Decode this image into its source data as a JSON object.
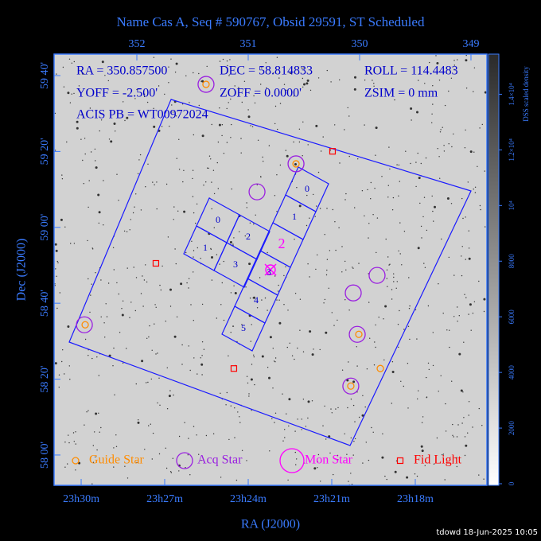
{
  "chart_data": {
    "type": "skymap",
    "title": "Name Cas A, Seq # 590767, Obsid 29591, ST Scheduled",
    "info": [
      "RA = 350.857500",
      "DEC = 58.814833",
      "ROLL = 114.4483",
      "YOFF = -2.500'",
      "ZOFF = 0.0000'",
      "ZSIM = 0 mm",
      "ACIS PB = WT00972024"
    ],
    "xlabel": "RA (J2000)",
    "ylabel": "Dec (J2000)",
    "xlim": [
      352.743,
      348.857
    ],
    "ylim": [
      57.867,
      59.761
    ],
    "xticks": [
      {
        "value": 352.5,
        "label": "23h30m"
      },
      {
        "value": 351.75,
        "label": "23h27m"
      },
      {
        "value": 351.0,
        "label": "23h24m"
      },
      {
        "value": 350.25,
        "label": "23h21m"
      },
      {
        "value": 349.5,
        "label": "23h18m"
      }
    ],
    "x2ticks": [
      352,
      351,
      350,
      349
    ],
    "yticks": [
      {
        "value": 58.0,
        "label": "58 00'"
      },
      {
        "value": 58.3333,
        "label": "58 20'"
      },
      {
        "value": 58.6667,
        "label": "58 40'"
      },
      {
        "value": 59.0,
        "label": "59 00'"
      },
      {
        "value": 59.3333,
        "label": "59 20'"
      },
      {
        "value": 59.6667,
        "label": "59 40'"
      }
    ],
    "colorbar": {
      "label": "DSS scaled density",
      "clim": [
        0,
        15500
      ],
      "ticks": [
        0,
        2000,
        4000,
        6000,
        8000,
        {
          "value": 10000,
          "label": "10⁴"
        },
        {
          "value": 12000,
          "label": "1.2×10⁴"
        },
        {
          "value": 14000,
          "label": "1.4×10⁴"
        }
      ]
    },
    "series": [
      {
        "name": "Guide Star",
        "color": "#ff8c00",
        "marker": "small-circle",
        "ra": [
          351.379,
          350.571,
          352.464,
          350.007,
          350.079,
          349.814
        ],
        "dec": [
          59.628,
          59.279,
          58.572,
          58.53,
          58.303,
          58.38
        ]
      },
      {
        "name": "Acq Star",
        "color": "#9a1fe0",
        "marker": "circle",
        "ra": [
          351.379,
          350.571,
          350.921,
          349.843,
          350.057,
          350.021,
          352.471,
          350.079
        ],
        "dec": [
          59.628,
          59.279,
          59.156,
          58.789,
          58.712,
          58.53,
          58.572,
          58.303
        ]
      },
      {
        "name": "Mon Star",
        "color": "#ff00ff",
        "marker": "big-circle",
        "ra": [],
        "dec": []
      },
      {
        "name": "Fid Light",
        "color": "#ff0000",
        "marker": "square",
        "ra": [
          350.243,
          351.829,
          351.129
        ],
        "dec": [
          59.334,
          58.842,
          58.38
        ]
      }
    ],
    "chip_labels_i": [
      "0",
      "2",
      "1",
      "3"
    ],
    "chip_labels_s": [
      "0",
      "1",
      "2",
      "3",
      "4",
      "5"
    ],
    "footer": "tdowd 18-Jun-2025 10:05"
  }
}
